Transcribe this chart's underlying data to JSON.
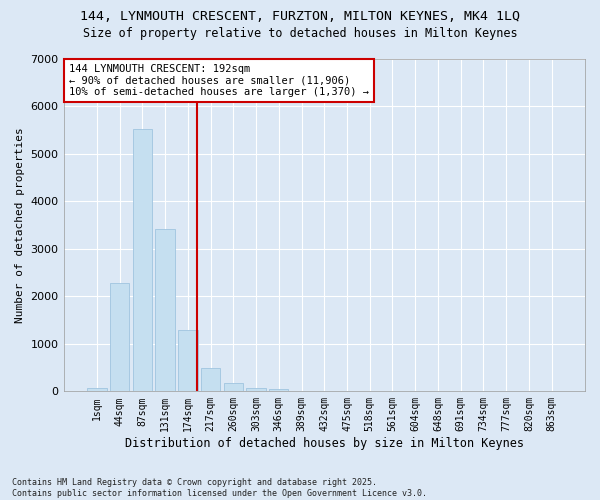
{
  "title_line1": "144, LYNMOUTH CRESCENT, FURZTON, MILTON KEYNES, MK4 1LQ",
  "title_line2": "Size of property relative to detached houses in Milton Keynes",
  "xlabel": "Distribution of detached houses by size in Milton Keynes",
  "ylabel": "Number of detached properties",
  "categories": [
    "1sqm",
    "44sqm",
    "87sqm",
    "131sqm",
    "174sqm",
    "217sqm",
    "260sqm",
    "303sqm",
    "346sqm",
    "389sqm",
    "432sqm",
    "475sqm",
    "518sqm",
    "561sqm",
    "604sqm",
    "648sqm",
    "691sqm",
    "734sqm",
    "777sqm",
    "820sqm",
    "863sqm"
  ],
  "values": [
    75,
    2280,
    5520,
    3420,
    1300,
    490,
    185,
    80,
    50,
    0,
    0,
    0,
    0,
    0,
    0,
    0,
    0,
    0,
    0,
    0,
    0
  ],
  "bar_color": "#c5dff0",
  "bar_edgecolor": "#a0c4e0",
  "vline_color": "#cc0000",
  "annotation_text": "144 LYNMOUTH CRESCENT: 192sqm\n← 90% of detached houses are smaller (11,906)\n10% of semi-detached houses are larger (1,370) →",
  "ylim": [
    0,
    7000
  ],
  "yticks": [
    0,
    1000,
    2000,
    3000,
    4000,
    5000,
    6000,
    7000
  ],
  "background_color": "#dce8f5",
  "grid_color": "#ffffff",
  "footer": "Contains HM Land Registry data © Crown copyright and database right 2025.\nContains public sector information licensed under the Open Government Licence v3.0."
}
